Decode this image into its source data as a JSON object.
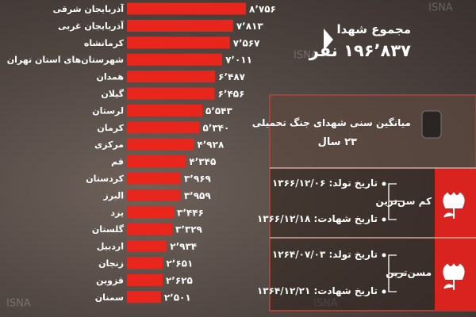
{
  "chart_data": {
    "type": "bar",
    "orientation": "horizontal",
    "color": "#e8261c",
    "categories": [
      "آذربایجان شرقی",
      "آذربایجان غربی",
      "کرمانشاه",
      "شهرستان‌های استان تهران",
      "همدان",
      "گیلان",
      "لرستان",
      "کرمان",
      "مرکزی",
      "قم",
      "کردستان",
      "البرز",
      "یزد",
      "گلستان",
      "اردبیل",
      "زنجان",
      "قزوین",
      "سمنان"
    ],
    "values": [
      8756,
      7813,
      7567,
      7011,
      6487,
      6456,
      5543,
      5340,
      4928,
      4345,
      3969,
      3959,
      3446,
      3329,
      2934,
      2651,
      2625,
      2501
    ],
    "value_labels": [
      "۸٬۷۵۶",
      "۷٬۸۱۳",
      "۷٬۵۶۷",
      "۷٬۰۱۱",
      "۶٬۴۸۷",
      "۶٬۴۵۶",
      "۵٬۵۴۳",
      "۵٬۳۴۰",
      "۴٬۹۲۸",
      "۴٬۳۴۵",
      "۳٬۹۶۹",
      "۳٬۹۵۹",
      "۳٬۴۴۶",
      "۳٬۳۲۹",
      "۲٬۹۳۴",
      "۲٬۶۵۱",
      "۲٬۶۲۵",
      "۲٬۵۰۱"
    ]
  },
  "summary": {
    "title": "مجموع شهدا",
    "total": "۱۹۶٬۸۳۷ نفر"
  },
  "panel": {
    "average": {
      "title": "میانگین سنی شهدای جنگ تحمیلی",
      "value": "۲۳ سال"
    },
    "youngest": {
      "label": "کم سن‌ترین",
      "birth": "تاریخ تولد: ۱۳۶۶/۱۲/۰۶",
      "death": "تاریخ شهادت: ۱۳۶۶/۱۲/۱۸"
    },
    "oldest": {
      "label": "مسن‌ترین",
      "birth": "تاریخ تولد: ۱۲۶۴/۰۷/۰۳",
      "death": "تاریخ شهادت: ۱۳۶۴/۱۲/۲۱"
    }
  },
  "watermark": "ISNA"
}
